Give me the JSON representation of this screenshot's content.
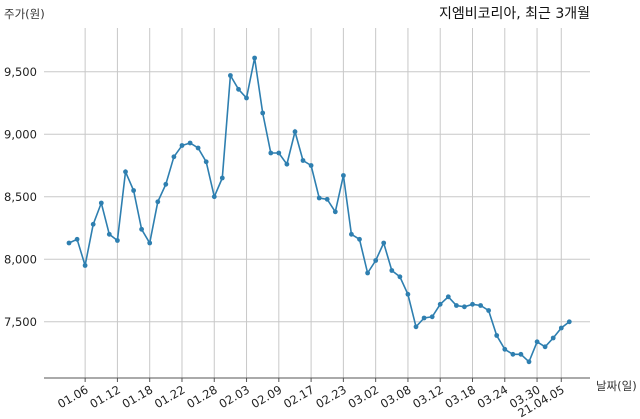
{
  "chart_data": {
    "type": "line",
    "title": "지엠비코리아, 최근 3개월",
    "ylabel": "주가(원)",
    "xlabel": "날짜(일)",
    "ylim": [
      7050,
      9850
    ],
    "yticks": [
      7500,
      8000,
      8500,
      9000,
      9500
    ],
    "ytick_labels": [
      "7,500",
      "8,000",
      "8,500",
      "9,000",
      "9,500"
    ],
    "xtick_labels": [
      "01.06",
      "01.12",
      "01.18",
      "01.22",
      "01.28",
      "02.03",
      "02.09",
      "02.17",
      "02.23",
      "03.02",
      "03.08",
      "03.12",
      "03.18",
      "03.24",
      "03.30",
      "21.04.05"
    ],
    "xtick_index": [
      2,
      6,
      10,
      14,
      18,
      22,
      26,
      30,
      34,
      38,
      42,
      46,
      50,
      54,
      58,
      61
    ],
    "grid": true,
    "color": "#2e7fb0",
    "values": [
      8130,
      8160,
      7950,
      8280,
      8450,
      8200,
      8150,
      8700,
      8550,
      8240,
      8130,
      8460,
      8600,
      8820,
      8910,
      8930,
      8890,
      8780,
      8500,
      8650,
      9470,
      9360,
      9290,
      9610,
      9170,
      8850,
      8850,
      8760,
      9020,
      8790,
      8750,
      8490,
      8480,
      8380,
      8670,
      8200,
      8160,
      7890,
      7990,
      8130,
      7910,
      7860,
      7720,
      7460,
      7530,
      7540,
      7640,
      7700,
      7630,
      7620,
      7640,
      7630,
      7590,
      7390,
      7280,
      7240,
      7240,
      7180,
      7340,
      7300,
      7370,
      7450,
      7500
    ]
  }
}
